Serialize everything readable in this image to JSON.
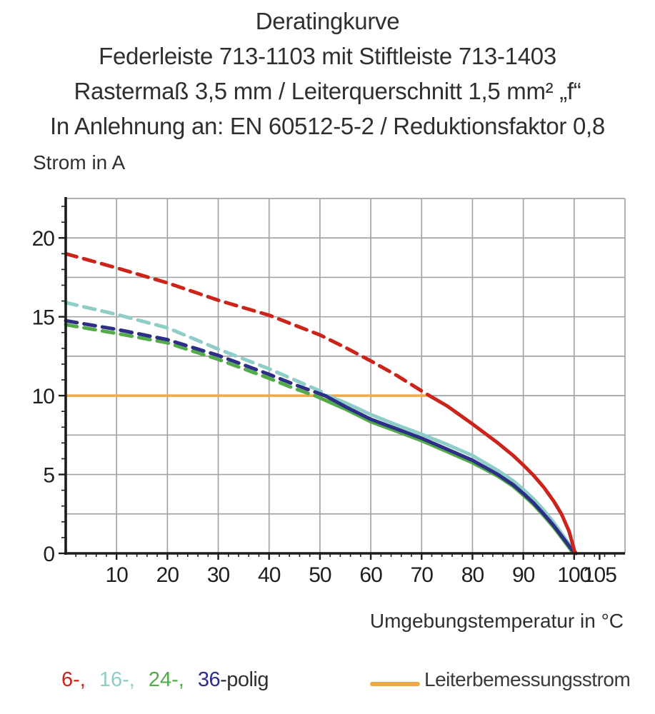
{
  "header": {
    "lines": [
      "Deratingkurve",
      "Federleiste 713-1103 mit Stiftleiste 713-1403",
      "Rastermaß 3,5 mm / Leiterquerschnitt 1,5 mm² „f“",
      "In Anlehnung an: EN 60512-5-2 / Reduktionsfaktor 0,8"
    ]
  },
  "chart_data": {
    "type": "line",
    "title": "Deratingkurve",
    "xlabel": "Umgebungstemperatur in °C",
    "ylabel": "Strom in A",
    "xlim": [
      0,
      110
    ],
    "ylim": [
      0,
      22.5
    ],
    "x_tick_labels": [
      10,
      20,
      30,
      40,
      50,
      60,
      70,
      80,
      90,
      100,
      105
    ],
    "y_tick_labels": [
      0,
      5,
      10,
      15,
      20
    ],
    "x_gridlines": [
      10,
      20,
      30,
      40,
      50,
      60,
      70,
      80,
      90,
      100,
      110
    ],
    "y_gridlines": [
      2.5,
      5,
      7.5,
      10,
      12.5,
      15,
      17.5,
      20,
      22.5
    ],
    "x_minor_tick_step": 2,
    "y_minor_tick_step": 1,
    "grid_color": "#a4a4a6",
    "axis_color": "#1c1c1c",
    "legend_position": "bottom",
    "rated_line": {
      "label": "Leiterbemessungsstrom",
      "y": 10,
      "x_start": 0,
      "x_end": 71,
      "color": "#f0a944"
    },
    "series": [
      {
        "name": "24-polig",
        "color": "#53ab49",
        "dashed": [
          [
            0,
            14.5
          ],
          [
            10,
            13.95
          ],
          [
            20,
            13.35
          ],
          [
            30,
            12.3
          ],
          [
            40,
            11.1
          ],
          [
            45,
            10.45
          ],
          [
            49,
            10.0
          ]
        ],
        "solid": [
          [
            49,
            10.0
          ],
          [
            55,
            9.15
          ],
          [
            60,
            8.35
          ],
          [
            65,
            7.75
          ],
          [
            70,
            7.15
          ],
          [
            75,
            6.45
          ],
          [
            80,
            5.75
          ],
          [
            85,
            4.9
          ],
          [
            88,
            4.25
          ],
          [
            90,
            3.7
          ],
          [
            92,
            3.1
          ],
          [
            94,
            2.4
          ],
          [
            96,
            1.65
          ],
          [
            98,
            0.8
          ],
          [
            99.5,
            0.15
          ],
          [
            100.3,
            0
          ]
        ]
      },
      {
        "name": "16-polig",
        "color": "#8ecdc8",
        "dashed": [
          [
            0,
            15.9
          ],
          [
            10,
            15.15
          ],
          [
            20,
            14.3
          ],
          [
            30,
            12.95
          ],
          [
            40,
            11.7
          ],
          [
            45,
            11.0
          ],
          [
            50,
            10.3
          ],
          [
            51.5,
            10.0
          ]
        ],
        "solid": [
          [
            51.5,
            10.0
          ],
          [
            55,
            9.55
          ],
          [
            60,
            8.8
          ],
          [
            65,
            8.15
          ],
          [
            70,
            7.55
          ],
          [
            75,
            6.9
          ],
          [
            80,
            6.2
          ],
          [
            85,
            5.25
          ],
          [
            88,
            4.6
          ],
          [
            90,
            4.05
          ],
          [
            92,
            3.45
          ],
          [
            94,
            2.75
          ],
          [
            96,
            1.95
          ],
          [
            98,
            1.05
          ],
          [
            99.5,
            0.35
          ],
          [
            100.4,
            0
          ]
        ]
      },
      {
        "name": "36-polig",
        "color": "#2d2f87",
        "dashed": [
          [
            0,
            14.75
          ],
          [
            10,
            14.2
          ],
          [
            20,
            13.55
          ],
          [
            30,
            12.55
          ],
          [
            40,
            11.35
          ],
          [
            45,
            10.7
          ],
          [
            51,
            10.0
          ]
        ],
        "solid": [
          [
            51,
            10.0
          ],
          [
            55,
            9.3
          ],
          [
            60,
            8.5
          ],
          [
            65,
            7.9
          ],
          [
            70,
            7.3
          ],
          [
            75,
            6.6
          ],
          [
            80,
            5.9
          ],
          [
            85,
            5.0
          ],
          [
            88,
            4.35
          ],
          [
            90,
            3.8
          ],
          [
            92,
            3.2
          ],
          [
            94,
            2.5
          ],
          [
            96,
            1.75
          ],
          [
            98,
            0.9
          ],
          [
            99.5,
            0.25
          ],
          [
            100.4,
            0
          ]
        ]
      },
      {
        "name": "6-polig",
        "color": "#cb241b",
        "dashed": [
          [
            0,
            19.0
          ],
          [
            10,
            18.1
          ],
          [
            20,
            17.15
          ],
          [
            30,
            16.05
          ],
          [
            40,
            15.1
          ],
          [
            50,
            13.85
          ],
          [
            55,
            13.05
          ],
          [
            60,
            12.2
          ],
          [
            65,
            11.3
          ],
          [
            70,
            10.3
          ],
          [
            71.5,
            10.0
          ]
        ],
        "solid": [
          [
            71.5,
            10.0
          ],
          [
            75,
            9.35
          ],
          [
            80,
            8.2
          ],
          [
            85,
            7.0
          ],
          [
            88,
            6.2
          ],
          [
            90,
            5.6
          ],
          [
            92,
            4.95
          ],
          [
            94,
            4.2
          ],
          [
            96,
            3.3
          ],
          [
            97.5,
            2.5
          ],
          [
            99,
            1.4
          ],
          [
            100.2,
            0
          ]
        ]
      }
    ]
  },
  "legend": {
    "poles": [
      {
        "label": "6-,",
        "color": "#cb241b"
      },
      {
        "label": "16-,",
        "color": "#8ecdc8"
      },
      {
        "label": "24-,",
        "color": "#53ab49"
      },
      {
        "label": "36",
        "color": "#2d2f87"
      }
    ],
    "suffix": "-polig",
    "rated": {
      "label": "Leiterbemessungsstrom",
      "color": "#f0a944"
    }
  }
}
